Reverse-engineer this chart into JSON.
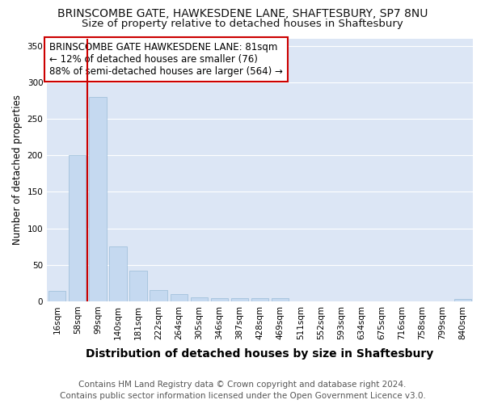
{
  "title": "BRINSCOMBE GATE, HAWKESDENE LANE, SHAFTESBURY, SP7 8NU",
  "subtitle": "Size of property relative to detached houses in Shaftesbury",
  "xlabel": "Distribution of detached houses by size in Shaftesbury",
  "ylabel": "Number of detached properties",
  "bin_labels": [
    "16sqm",
    "58sqm",
    "99sqm",
    "140sqm",
    "181sqm",
    "222sqm",
    "264sqm",
    "305sqm",
    "346sqm",
    "387sqm",
    "428sqm",
    "469sqm",
    "511sqm",
    "552sqm",
    "593sqm",
    "634sqm",
    "675sqm",
    "716sqm",
    "758sqm",
    "799sqm",
    "840sqm"
  ],
  "bar_heights": [
    14,
    200,
    280,
    75,
    42,
    15,
    10,
    5,
    4,
    4,
    4,
    4,
    0,
    0,
    0,
    0,
    0,
    0,
    0,
    0,
    3
  ],
  "bar_color": "#c5d9f0",
  "bar_edge_color": "#9abcd8",
  "background_color": "#dce6f5",
  "fig_background": "#ffffff",
  "grid_color": "#ffffff",
  "vline_x": 1.5,
  "vline_color": "#cc0000",
  "ylim": [
    0,
    360
  ],
  "yticks": [
    0,
    50,
    100,
    150,
    200,
    250,
    300,
    350
  ],
  "annotation_title": "BRINSCOMBE GATE HAWKESDENE LANE: 81sqm",
  "annotation_line1": "← 12% of detached houses are smaller (76)",
  "annotation_line2": "88% of semi-detached houses are larger (564) →",
  "annotation_box_color": "#ffffff",
  "annotation_box_edge": "#cc0000",
  "footer_line1": "Contains HM Land Registry data © Crown copyright and database right 2024.",
  "footer_line2": "Contains public sector information licensed under the Open Government Licence v3.0.",
  "title_fontsize": 10,
  "subtitle_fontsize": 9.5,
  "xlabel_fontsize": 10,
  "ylabel_fontsize": 8.5,
  "tick_fontsize": 7.5,
  "annotation_fontsize": 8.5,
  "footer_fontsize": 7.5
}
